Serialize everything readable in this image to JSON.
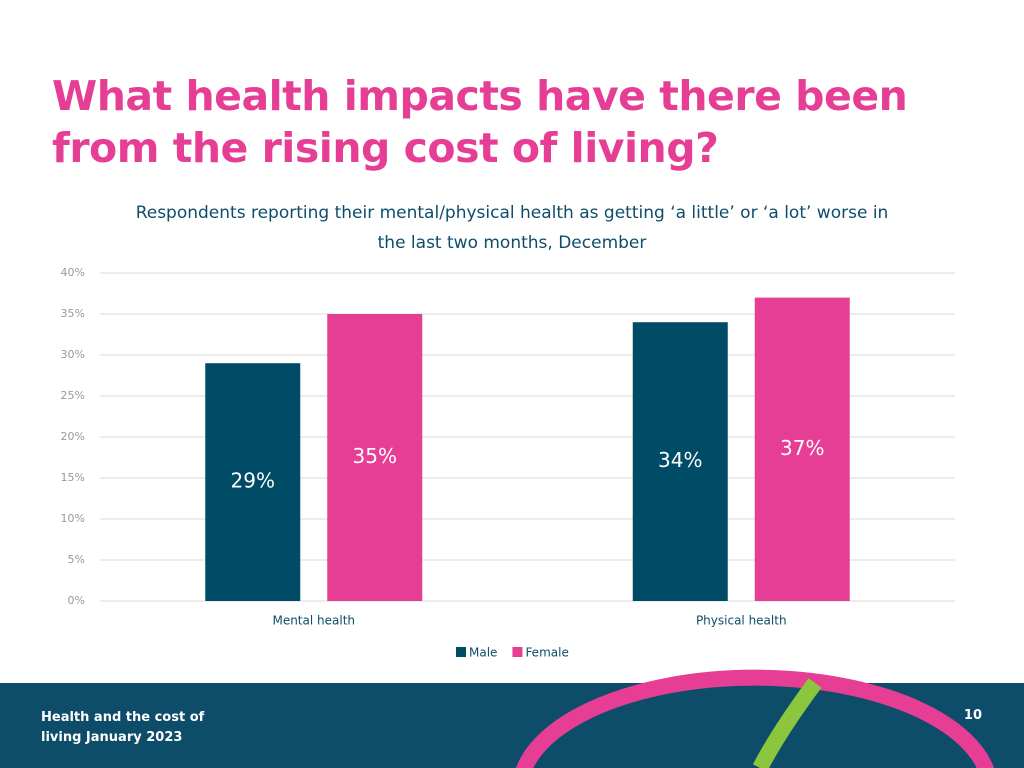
{
  "chart_data": {
    "type": "bar",
    "title": "What health impacts have there been from the rising cost of living?",
    "subtitle": "Respondents reporting their mental/physical health as getting ‘a little’ or ‘a lot’ worse in the last two months, December",
    "categories": [
      "Mental health",
      "Physical health"
    ],
    "series": [
      {
        "name": "Male",
        "color": "#004b66",
        "values": [
          29,
          34
        ],
        "value_labels": [
          "29%",
          "34%"
        ]
      },
      {
        "name": "Female",
        "color": "#e63e95",
        "values": [
          35,
          37
        ],
        "value_labels": [
          "35%",
          "37%"
        ]
      }
    ],
    "ylim": [
      0,
      40
    ],
    "yticks": [
      {
        "value": 0,
        "label": "0%"
      },
      {
        "value": 5,
        "label": "5%"
      },
      {
        "value": 10,
        "label": "10%"
      },
      {
        "value": 15,
        "label": "15%"
      },
      {
        "value": 20,
        "label": "20%"
      },
      {
        "value": 25,
        "label": "25%"
      },
      {
        "value": 30,
        "label": "30%"
      },
      {
        "value": 35,
        "label": "35%"
      },
      {
        "value": 40,
        "label": "40%"
      }
    ],
    "grid": true,
    "legend": "bottom"
  },
  "footer": {
    "text": "Health and the cost of living January 2023",
    "page": 10
  }
}
